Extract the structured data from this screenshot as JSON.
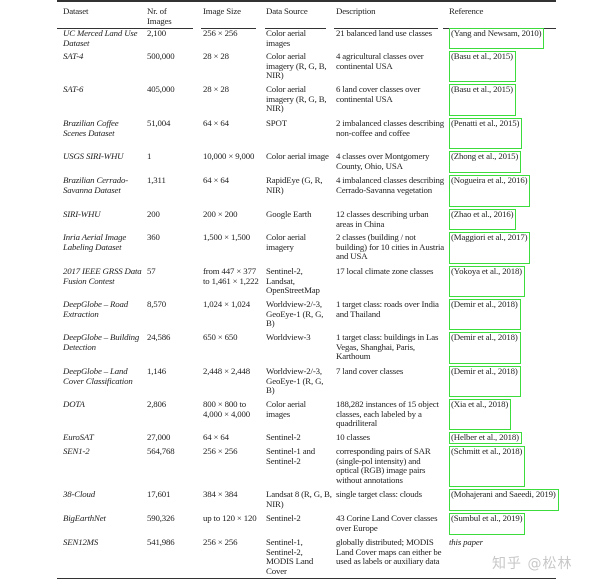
{
  "headers": [
    "Dataset",
    "Nr. of Images",
    "Image Size",
    "Data Source",
    "Description",
    "Reference"
  ],
  "rows": [
    {
      "dataset": "UC Merced Land Use Dataset",
      "images": "2,100",
      "size": "256 × 256",
      "source": "Color aerial images",
      "description": "21 balanced land use classes",
      "reference": "(Yang and Newsam, 2010)"
    },
    {
      "dataset": "SAT-4",
      "images": "500,000",
      "size": "28 × 28",
      "source": "Color aerial imagery (R, G, B, NIR)",
      "description": "4 agricultural classes over continental USA",
      "reference": "(Basu et al., 2015)"
    },
    {
      "dataset": "SAT-6",
      "images": "405,000",
      "size": "28 × 28",
      "source": "Color aerial imagery (R, G, B, NIR)",
      "description": "6 land cover classes over continental USA",
      "reference": "(Basu et al., 2015)"
    },
    {
      "dataset": "Brazilian Coffee Scenes Dataset",
      "images": "51,004",
      "size": "64 × 64",
      "source": "SPOT",
      "description": "2 imbalanced classes describing non-coffee and coffee",
      "reference": "(Penatti et al., 2015)"
    },
    {
      "dataset": "USGS SIRI-WHU",
      "images": "1",
      "size": "10,000 × 9,000",
      "source": "Color aerial image",
      "description": "4 classes over Montgomery County, Ohio, USA",
      "reference": "(Zhong et al., 2015)"
    },
    {
      "dataset": "Brazilian Cerrado-Savanna Dataset",
      "images": "1,311",
      "size": "64 × 64",
      "source": "RapidEye (G, R, NIR)",
      "description": "4 imbalanced classes describing Cerrado-Savanna vegetation",
      "reference": "(Nogueira et al., 2016)"
    },
    {
      "dataset": "SIRI-WHU",
      "images": "200",
      "size": "200 × 200",
      "source": "Google Earth",
      "description": "12 classes describing urban areas in China",
      "reference": "(Zhao et al., 2016)"
    },
    {
      "dataset": "Inria Aerial Image Labeling Dataset",
      "images": "360",
      "size": "1,500 × 1,500",
      "source": "Color aerial imagery",
      "description": "2 classes (building / not building) for 10 cities in Austria and USA",
      "reference": "(Maggiori et al., 2017)"
    },
    {
      "dataset": "2017 IEEE GRSS Data Fusion Contest",
      "images": "57",
      "size": "from 447 × 377 to 1,461 × 1,222",
      "source": "Sentinel-2, Landsat, OpenStreetMap",
      "description": "17 local climate zone classes",
      "reference": "(Yokoya et al., 2018)"
    },
    {
      "dataset": "DeepGlobe – Road Extraction",
      "images": "8,570",
      "size": "1,024 × 1,024",
      "source": "Worldview-2/-3, GeoEye-1 (R, G, B)",
      "description": "1 target class: roads over India and Thailand",
      "reference": "(Demir et al., 2018)"
    },
    {
      "dataset": "DeepGlobe – Building Detection",
      "images": "24,586",
      "size": "650 × 650",
      "source": "Worldview-3",
      "description": "1 target class: buildings in Las Vegas, Shanghai, Paris, Karthoum",
      "reference": "(Demir et al., 2018)"
    },
    {
      "dataset": "DeepGlobe – Land Cover Classification",
      "images": "1,146",
      "size": "2,448 × 2,448",
      "source": "Worldview-2/-3, GeoEye-1 (R, G, B)",
      "description": "7 land cover classes",
      "reference": "(Demir et al., 2018)"
    },
    {
      "dataset": "DOTA",
      "images": "2,806",
      "size": "800 × 800 to 4,000 × 4,000",
      "source": "Color aerial images",
      "description": "188,282 instances of 15 object classes, each labeled by a quadriliteral",
      "reference": "(Xia et al., 2018)"
    },
    {
      "dataset": "EuroSAT",
      "images": "27,000",
      "size": "64 × 64",
      "source": "Sentinel-2",
      "description": "10 classes",
      "reference": "(Helber et al., 2018)"
    },
    {
      "dataset": "SEN1-2",
      "images": "564,768",
      "size": "256 × 256",
      "source": "Sentinel-1 and Sentinel-2",
      "description": "corresponding pairs of SAR (single-pol intensity) and optical (RGB) image pairs without annotations",
      "reference": "(Schmitt et al., 2018)"
    },
    {
      "dataset": "38-Cloud",
      "images": "17,601",
      "size": "384 × 384",
      "source": "Landsat 8 (R, G, B, NIR)",
      "description": "single target class: clouds",
      "reference": "(Mohajerani and Saeedi, 2019)"
    },
    {
      "dataset": "BigEarthNet",
      "images": "590,326",
      "size": "up to 120 × 120",
      "source": "Sentinel-2",
      "description": "43 Corine Land Cover classes over Europe",
      "reference": "(Sumbul et al., 2019)"
    },
    {
      "dataset": "SEN12MS",
      "images": "541,986",
      "size": "256 × 256",
      "source": "Sentinel-1, Sentinel-2, MODIS Land Cover",
      "description": "globally distributed; MODIS Land Cover maps can either be used as labels or auxiliary data",
      "reference": "this paper"
    }
  ],
  "highlight_color": "#3ddc3d",
  "watermark": "知乎 @松林"
}
